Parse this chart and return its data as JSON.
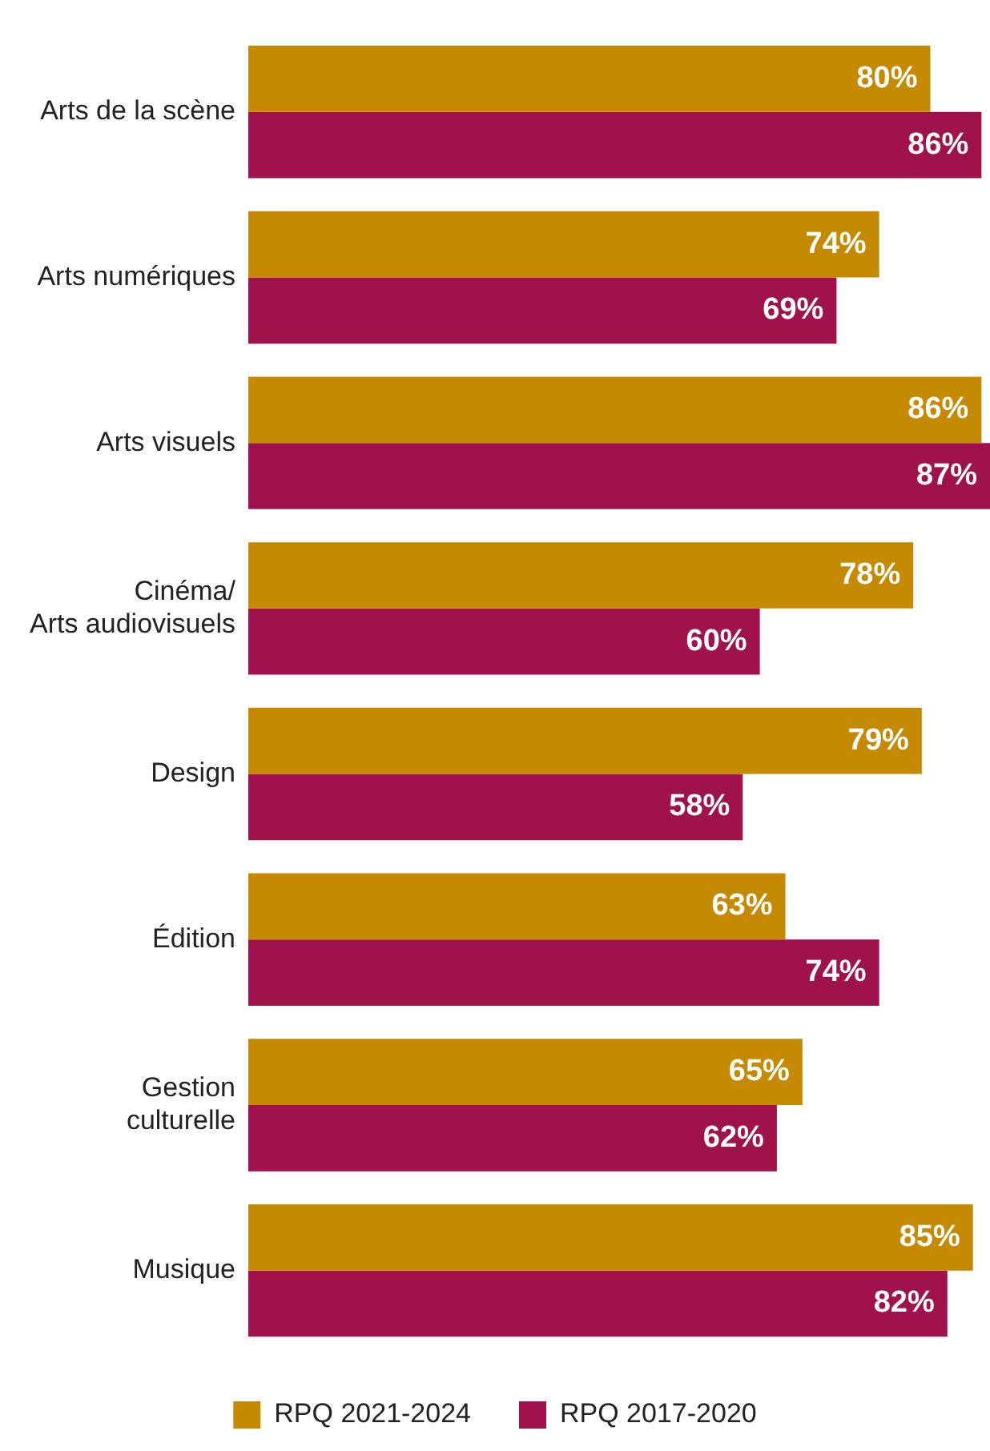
{
  "chart_data": {
    "type": "bar",
    "orientation": "horizontal",
    "categories": [
      "Arts de la scène",
      "Arts numériques",
      "Arts visuels",
      "Cinéma/\nArts audiovisuels",
      "Design",
      "Édition",
      "Gestion\nculturelle",
      "Musique"
    ],
    "series": [
      {
        "name": "RPQ 2021-2024",
        "color": "#c58a00",
        "values": [
          80,
          74,
          86,
          78,
          79,
          63,
          65,
          85
        ],
        "value_labels": [
          "80%",
          "74%",
          "86%",
          "78%",
          "79%",
          "63%",
          "65%",
          "85%"
        ]
      },
      {
        "name": "RPQ 2017-2020",
        "color": "#a0124c",
        "values": [
          86,
          69,
          87,
          60,
          58,
          74,
          62,
          82
        ],
        "value_labels": [
          "86%",
          "69%",
          "87%",
          "60%",
          "58%",
          "74%",
          "62%",
          "82%"
        ]
      }
    ],
    "legend": "bottom"
  }
}
